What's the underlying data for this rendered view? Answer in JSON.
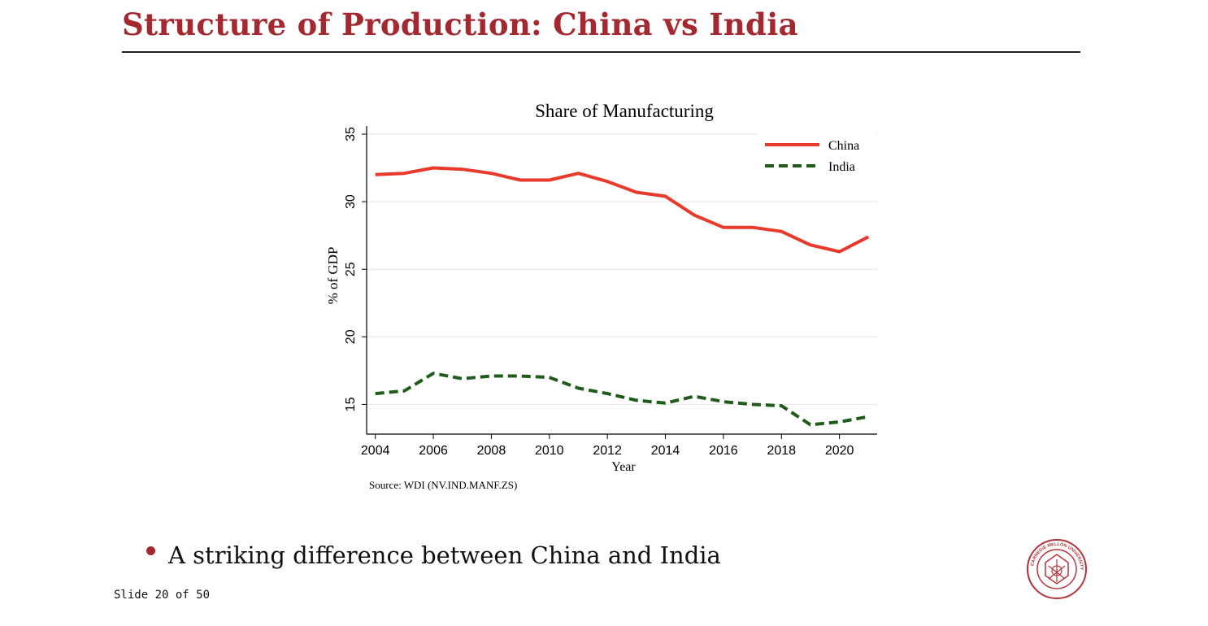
{
  "slide": {
    "title": "Structure of Production: China vs India",
    "bullet": "A striking difference between China and India",
    "slide_number": "Slide 20 of 50",
    "seal_text": "CARNEGIE MELLON UNIVERSITY"
  },
  "colors": {
    "title": "#a3282f",
    "china": "#e8392a",
    "india": "#1f5c1a",
    "grid": "#e6e6e6"
  },
  "chart_data": {
    "type": "line",
    "title": "Share of Manufacturing",
    "xlabel": "Year",
    "ylabel": "% of GDP",
    "source": "Source: WDI (NV.IND.MANF.ZS)",
    "xlim": [
      2003.7,
      2021.3
    ],
    "ylim": [
      12.8,
      35.6
    ],
    "xticks": [
      2004,
      2006,
      2008,
      2010,
      2012,
      2014,
      2016,
      2018,
      2020
    ],
    "yticks": [
      15,
      20,
      25,
      30,
      35
    ],
    "grid": true,
    "legend_position": "top-right",
    "x": [
      2004,
      2005,
      2006,
      2007,
      2008,
      2009,
      2010,
      2011,
      2012,
      2013,
      2014,
      2015,
      2016,
      2017,
      2018,
      2019,
      2020,
      2021
    ],
    "series": [
      {
        "name": "China",
        "style": "solid",
        "values": [
          32.0,
          32.1,
          32.5,
          32.4,
          32.1,
          31.6,
          31.6,
          32.1,
          31.5,
          30.7,
          30.4,
          29.0,
          28.1,
          28.1,
          27.8,
          26.8,
          26.3,
          27.4
        ]
      },
      {
        "name": "India",
        "style": "dashed",
        "values": [
          15.8,
          16.0,
          17.3,
          16.9,
          17.1,
          17.1,
          17.0,
          16.2,
          15.8,
          15.3,
          15.1,
          15.6,
          15.2,
          15.0,
          14.9,
          13.5,
          13.7,
          14.1
        ]
      }
    ]
  }
}
